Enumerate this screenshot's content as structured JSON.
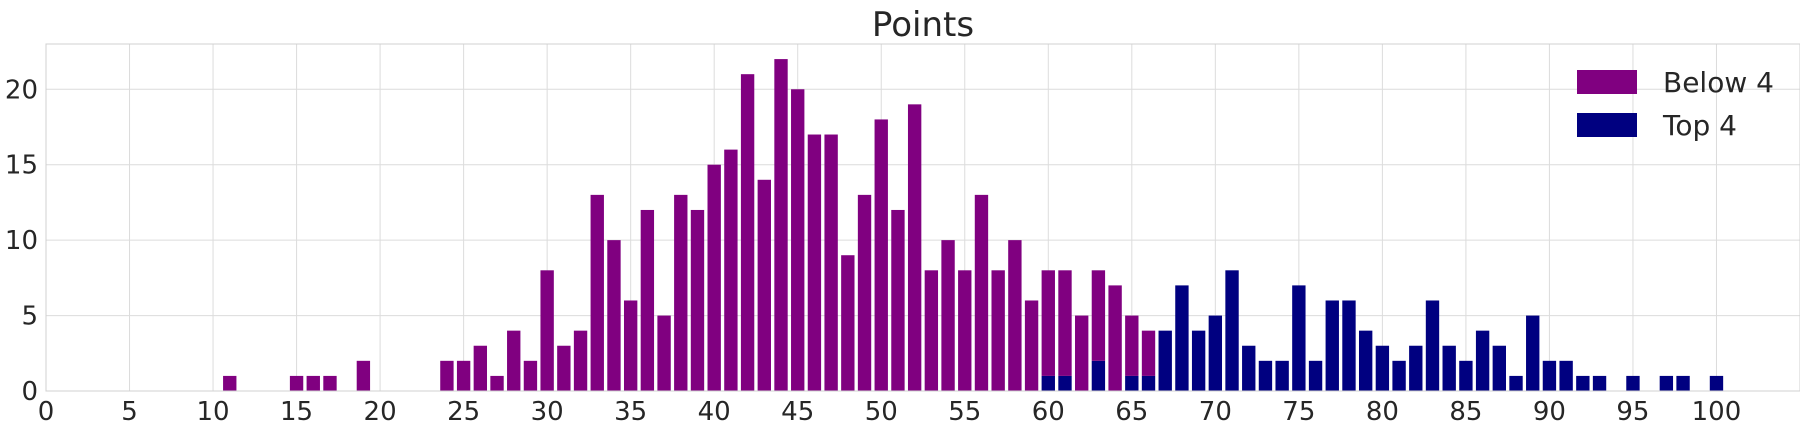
{
  "chart_data": {
    "type": "bar",
    "stacked": true,
    "title": "Points",
    "xlabel": "",
    "ylabel": "",
    "xlim": [
      0,
      105
    ],
    "ylim": [
      0,
      23
    ],
    "grid": true,
    "legend_position": "top-right",
    "xticks": [
      "0",
      "5",
      "10",
      "15",
      "20",
      "25",
      "30",
      "35",
      "40",
      "45",
      "50",
      "55",
      "60",
      "65",
      "70",
      "75",
      "80",
      "85",
      "90",
      "95",
      "100"
    ],
    "yticks": [
      "0",
      "5",
      "10",
      "15",
      "20"
    ],
    "x": [
      11,
      15,
      16,
      17,
      19,
      24,
      25,
      26,
      27,
      28,
      29,
      30,
      31,
      32,
      33,
      34,
      35,
      36,
      37,
      38,
      39,
      40,
      41,
      42,
      43,
      44,
      45,
      46,
      47,
      48,
      49,
      50,
      51,
      52,
      53,
      54,
      55,
      56,
      57,
      58,
      59,
      60,
      61,
      62,
      63,
      64,
      65,
      66,
      67,
      68,
      69,
      70,
      71,
      72,
      73,
      74,
      75,
      76,
      77,
      78,
      79,
      80,
      81,
      82,
      83,
      84,
      85,
      86,
      87,
      88,
      89,
      90,
      91,
      92,
      93,
      95,
      97,
      98,
      100
    ],
    "series": [
      {
        "name": "Top 4",
        "color": "#000080",
        "values": [
          0,
          0,
          0,
          0,
          0,
          0,
          0,
          0,
          0,
          0,
          0,
          0,
          0,
          0,
          0,
          0,
          0,
          0,
          0,
          0,
          0,
          0,
          0,
          0,
          0,
          0,
          0,
          0,
          0,
          0,
          0,
          0,
          0,
          0,
          0,
          0,
          0,
          0,
          0,
          0,
          0,
          1,
          1,
          0,
          2,
          0,
          1,
          1,
          4,
          7,
          4,
          5,
          8,
          3,
          2,
          2,
          7,
          2,
          6,
          6,
          4,
          3,
          2,
          3,
          6,
          3,
          2,
          4,
          3,
          1,
          5,
          2,
          2,
          1,
          1,
          1,
          1,
          1,
          1
        ]
      },
      {
        "name": "Below 4",
        "color": "#800080",
        "values": [
          1,
          1,
          1,
          1,
          2,
          2,
          2,
          3,
          1,
          4,
          2,
          8,
          3,
          4,
          13,
          10,
          6,
          12,
          5,
          13,
          12,
          15,
          16,
          21,
          14,
          22,
          20,
          17,
          17,
          9,
          13,
          18,
          12,
          19,
          8,
          10,
          8,
          13,
          8,
          10,
          6,
          7,
          7,
          5,
          6,
          7,
          4,
          3,
          0,
          0,
          0,
          0,
          0,
          0,
          0,
          0,
          0,
          0,
          0,
          0,
          0,
          0,
          0,
          0,
          0,
          0,
          0,
          0,
          0,
          0,
          0,
          0,
          0,
          0,
          0,
          0,
          0,
          0,
          0
        ]
      }
    ],
    "legend": [
      {
        "label": "Below 4",
        "color": "#800080"
      },
      {
        "label": "Top 4",
        "color": "#000080"
      }
    ]
  }
}
